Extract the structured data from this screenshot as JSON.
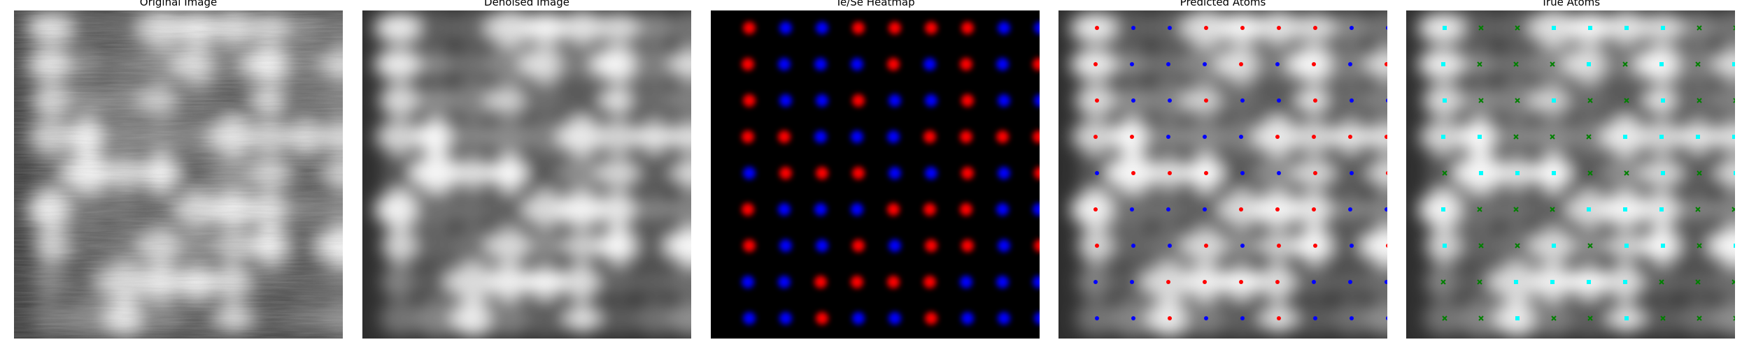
{
  "panels": [
    {
      "id": "original",
      "title": "Original Image"
    },
    {
      "id": "denoised",
      "title": "Denoised Image"
    },
    {
      "id": "heatmap",
      "title": "Te/Se Heatmap"
    },
    {
      "id": "predicted",
      "title": "Predicted Atoms"
    },
    {
      "id": "true",
      "title": "True Atoms"
    }
  ],
  "colors": {
    "te": "#ff0000",
    "se": "#0000ff",
    "true_te": "#00ffff",
    "true_se": "#008000",
    "heatmap_bg": "#000000"
  },
  "lattice": {
    "cols": 9,
    "rows": 9,
    "types": [
      "TSSTTTTSS",
      "TSSSTSTST",
      "TSSTSSTSS",
      "TTSSSTTTT",
      "STTTSSTST",
      "TSSSTTTSS",
      "TSSTSTTST",
      "SSTTTTSSS",
      "SSTSSTSSS"
    ]
  }
}
